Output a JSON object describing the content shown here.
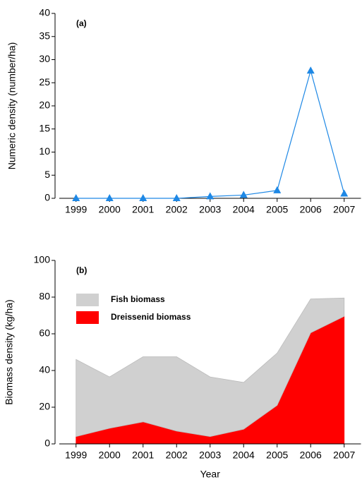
{
  "chart_data": [
    {
      "type": "line",
      "annotation": "(a)",
      "y_label": "Numeric density (number/ha)",
      "categories": [
        "1999",
        "2000",
        "2001",
        "2002",
        "2003",
        "2004",
        "2005",
        "2006",
        "2007"
      ],
      "series": [
        {
          "color": "#1e88e5",
          "values": [
            0,
            0,
            0,
            0,
            0.4,
            0.7,
            1.7,
            27.6,
            1.0
          ]
        }
      ],
      "ylim": [
        0,
        40
      ],
      "yticks": [
        0,
        5,
        10,
        15,
        20,
        25,
        30,
        35,
        40
      ]
    },
    {
      "type": "stacked_area",
      "annotation": "(b)",
      "y_label": "Biomass density (kg/ha)",
      "x_label": "Year",
      "categories": [
        "1999",
        "2000",
        "2001",
        "2002",
        "2003",
        "2004",
        "2005",
        "2006",
        "2007"
      ],
      "series": [
        {
          "name": "Dreissenid biomass",
          "color": "#ff0000",
          "values": [
            4,
            8.5,
            12,
            7,
            4,
            8,
            21,
            60.5,
            69.5
          ]
        },
        {
          "name": "Fish biomass",
          "color": "#d0d0d0",
          "values": [
            42,
            28,
            35.5,
            40.5,
            32.5,
            25.5,
            28.5,
            18.5,
            10
          ]
        }
      ],
      "ylim": [
        0,
        100
      ],
      "yticks": [
        0,
        20,
        40,
        60,
        80,
        100
      ]
    }
  ]
}
